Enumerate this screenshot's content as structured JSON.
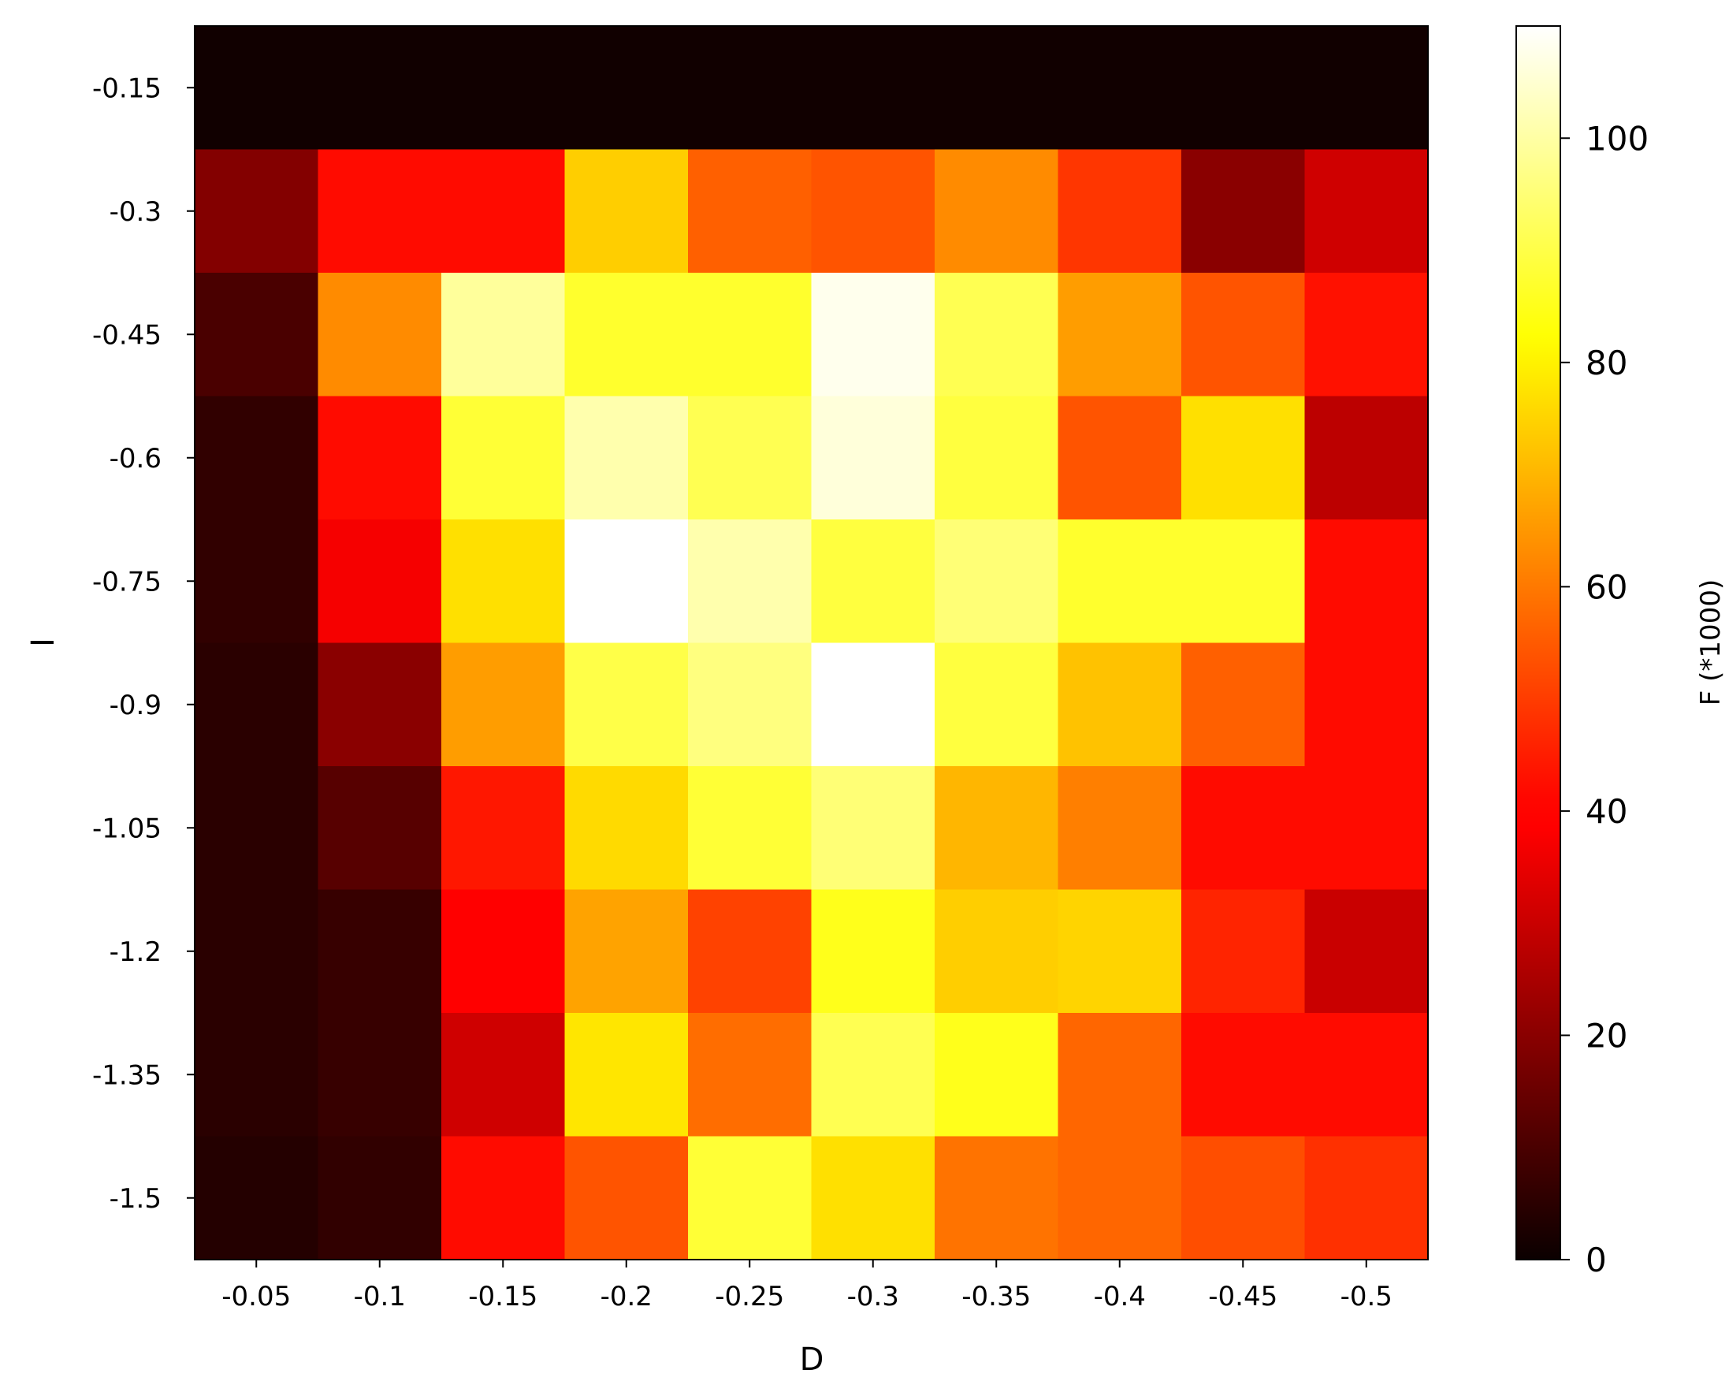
{
  "chart_data": {
    "type": "heatmap",
    "title": "",
    "xlabel": "D",
    "ylabel": "I",
    "colorbar_label": "F (*1000)",
    "colormap": "hot",
    "color_range": [
      0,
      110
    ],
    "colorbar_ticks": [
      "0",
      "20",
      "40",
      "60",
      "80",
      "100"
    ],
    "x_categories": [
      "-0.05",
      "-0.1",
      "-0.15",
      "-0.2",
      "-0.25",
      "-0.3",
      "-0.35",
      "-0.4",
      "-0.45",
      "-0.5"
    ],
    "y_categories": [
      "-0.15",
      "-0.3",
      "-0.45",
      "-0.6",
      "-0.75",
      "-0.9",
      "-1.05",
      "-1.2",
      "-1.35",
      "-1.5"
    ],
    "values": [
      [
        1,
        1,
        1,
        1,
        1,
        1,
        1,
        1,
        1,
        1
      ],
      [
        19,
        42,
        42,
        74,
        56,
        54,
        63,
        49,
        20,
        31
      ],
      [
        10,
        63,
        99,
        87,
        87,
        108,
        91,
        66,
        54,
        43
      ],
      [
        6,
        42,
        88,
        101,
        91,
        106,
        89,
        54,
        77,
        28
      ],
      [
        6,
        37,
        77,
        110,
        101,
        89,
        95,
        87,
        87,
        42
      ],
      [
        5,
        20,
        66,
        90,
        96,
        110,
        89,
        72,
        56,
        42
      ],
      [
        5,
        12,
        44,
        76,
        88,
        95,
        70,
        61,
        42,
        42
      ],
      [
        5,
        7,
        39,
        67,
        51,
        85,
        74,
        75,
        46,
        30
      ],
      [
        5,
        7,
        31,
        78,
        58,
        91,
        85,
        57,
        42,
        42
      ],
      [
        4,
        6,
        42,
        54,
        88,
        77,
        59,
        57,
        53,
        48
      ]
    ]
  }
}
